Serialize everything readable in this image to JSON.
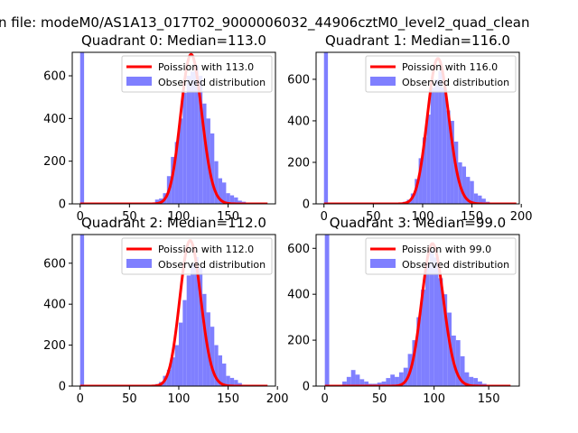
{
  "figure": {
    "suptitle": "n file: modeM0/AS1A13_017T02_9000006032_44906cztM0_level2_quad_clean"
  },
  "colors": {
    "histogram": "#7f7fff",
    "poisson": "#ff0000",
    "axes": "#000000",
    "legend_border": "#cccccc"
  },
  "chart_data": [
    {
      "type": "bar",
      "title": "Quadrant 0: Median=113.0",
      "xlim": [
        -8,
        198
      ],
      "ylim": [
        0,
        710
      ],
      "xticks": [
        0,
        50,
        100,
        150
      ],
      "yticks": [
        0,
        200,
        400,
        600
      ],
      "bin_width": 4,
      "legend": {
        "position": "top-right",
        "entries": [
          "Poission with 113.0",
          "Observed distribution"
        ]
      },
      "poisson_mean": 113.0,
      "poisson_peak": 700,
      "poisson_range": [
        0,
        190
      ],
      "histogram": {
        "name": "Observed distribution",
        "x": [
          0,
          72,
          76,
          80,
          84,
          88,
          92,
          96,
          100,
          104,
          108,
          112,
          116,
          120,
          124,
          128,
          132,
          136,
          140,
          144,
          148,
          152,
          156,
          160,
          164,
          168
        ],
        "values": [
          730,
          5,
          20,
          25,
          50,
          130,
          220,
          290,
          400,
          520,
          600,
          620,
          650,
          600,
          470,
          400,
          330,
          200,
          120,
          100,
          50,
          40,
          30,
          15,
          10,
          5
        ]
      }
    },
    {
      "type": "bar",
      "title": "Quadrant 1: Median=116.0",
      "xlim": [
        -8,
        198
      ],
      "ylim": [
        0,
        730
      ],
      "xticks": [
        0,
        50,
        100,
        150,
        200
      ],
      "yticks": [
        0,
        200,
        400,
        600
      ],
      "bin_width": 4,
      "legend": {
        "position": "top-right",
        "entries": [
          "Poission with 116.0",
          "Observed distribution"
        ]
      },
      "poisson_mean": 116.0,
      "poisson_peak": 700,
      "poisson_range": [
        0,
        195
      ],
      "histogram": {
        "name": "Observed distribution",
        "x": [
          0,
          76,
          80,
          84,
          88,
          92,
          96,
          100,
          104,
          108,
          112,
          116,
          120,
          124,
          128,
          132,
          136,
          140,
          144,
          148,
          152,
          156,
          160,
          164
        ],
        "values": [
          740,
          5,
          10,
          20,
          50,
          120,
          220,
          320,
          430,
          560,
          600,
          640,
          560,
          450,
          400,
          300,
          200,
          180,
          130,
          110,
          50,
          40,
          25,
          10
        ]
      }
    },
    {
      "type": "bar",
      "title": "Quadrant 2: Median=112.0",
      "xlim": [
        -8,
        198
      ],
      "ylim": [
        0,
        740
      ],
      "xticks": [
        0,
        50,
        100,
        150,
        200
      ],
      "yticks": [
        0,
        200,
        400,
        600
      ],
      "bin_width": 4,
      "legend": {
        "position": "top-right",
        "entries": [
          "Poission with 112.0",
          "Observed distribution"
        ]
      },
      "poisson_mean": 112.0,
      "poisson_peak": 710,
      "poisson_range": [
        0,
        190
      ],
      "histogram": {
        "name": "Observed distribution",
        "x": [
          0,
          76,
          80,
          84,
          88,
          92,
          96,
          100,
          104,
          108,
          112,
          116,
          120,
          124,
          128,
          132,
          136,
          140,
          144,
          148,
          152,
          156,
          160,
          164
        ],
        "values": [
          750,
          10,
          20,
          50,
          80,
          140,
          200,
          310,
          420,
          540,
          600,
          630,
          580,
          450,
          360,
          290,
          200,
          150,
          110,
          50,
          40,
          30,
          15,
          5
        ]
      }
    },
    {
      "type": "bar",
      "title": "Quadrant 3: Median=99.0",
      "xlim": [
        -8,
        178
      ],
      "ylim": [
        0,
        660
      ],
      "xticks": [
        0,
        50,
        100,
        150
      ],
      "yticks": [
        0,
        200,
        400,
        600
      ],
      "bin_width": 4,
      "legend": {
        "position": "top-right",
        "entries": [
          "Poission with 99.0",
          "Observed distribution"
        ]
      },
      "poisson_mean": 99.0,
      "poisson_peak": 620,
      "poisson_range": [
        0,
        170
      ],
      "histogram": {
        "name": "Observed distribution",
        "x": [
          0,
          16,
          20,
          24,
          28,
          32,
          36,
          40,
          44,
          48,
          52,
          56,
          60,
          64,
          68,
          72,
          76,
          80,
          84,
          88,
          92,
          96,
          100,
          104,
          108,
          112,
          116,
          120,
          124,
          128,
          132,
          136,
          140,
          144,
          148
        ],
        "values": [
          670,
          20,
          40,
          70,
          50,
          30,
          20,
          10,
          10,
          15,
          20,
          35,
          50,
          40,
          60,
          80,
          140,
          200,
          300,
          420,
          540,
          590,
          560,
          470,
          400,
          320,
          220,
          200,
          130,
          60,
          40,
          35,
          20,
          10,
          5
        ]
      }
    }
  ]
}
